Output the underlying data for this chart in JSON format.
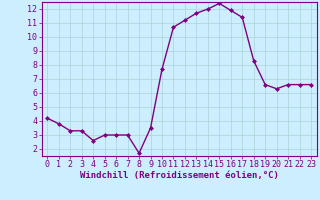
{
  "x": [
    0,
    1,
    2,
    3,
    4,
    5,
    6,
    7,
    8,
    9,
    10,
    11,
    12,
    13,
    14,
    15,
    16,
    17,
    18,
    19,
    20,
    21,
    22,
    23
  ],
  "y": [
    4.2,
    3.8,
    3.3,
    3.3,
    2.6,
    3.0,
    3.0,
    3.0,
    1.7,
    3.5,
    7.7,
    10.7,
    11.2,
    11.7,
    12.0,
    12.4,
    11.9,
    11.4,
    8.3,
    6.6,
    6.3,
    6.6,
    6.6,
    6.6
  ],
  "line_color": "#800080",
  "marker": "D",
  "marker_size": 2,
  "background_color": "#cceeff",
  "grid_color": "#aad4d4",
  "xlabel": "Windchill (Refroidissement éolien,°C)",
  "ylabel": "",
  "xlim": [
    -0.5,
    23.5
  ],
  "ylim": [
    1.5,
    12.5
  ],
  "xticks": [
    0,
    1,
    2,
    3,
    4,
    5,
    6,
    7,
    8,
    9,
    10,
    11,
    12,
    13,
    14,
    15,
    16,
    17,
    18,
    19,
    20,
    21,
    22,
    23
  ],
  "yticks": [
    2,
    3,
    4,
    5,
    6,
    7,
    8,
    9,
    10,
    11,
    12
  ],
  "tick_color": "#800080",
  "tick_fontsize": 6,
  "xlabel_fontsize": 6.5,
  "spine_color": "#800080",
  "linewidth": 1.0
}
